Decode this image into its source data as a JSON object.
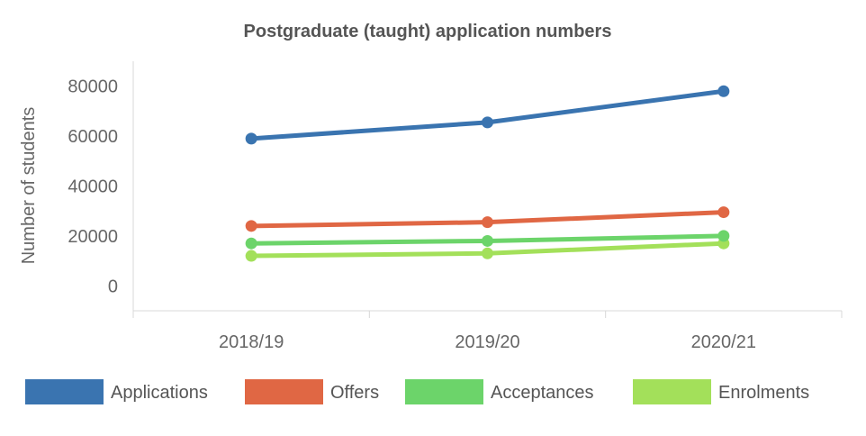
{
  "chart_data": {
    "type": "line",
    "title": "Postgraduate (taught) application numbers",
    "xlabel": "",
    "ylabel": "Number of students",
    "categories": [
      "2018/19",
      "2019/20",
      "2020/21"
    ],
    "ylim": [
      -10000,
      90000
    ],
    "yticks": [
      0,
      20000,
      40000,
      60000,
      80000
    ],
    "grid": false,
    "legend_position": "bottom",
    "series": [
      {
        "name": "Applications",
        "color": "#3a74b0",
        "values": [
          59000,
          65500,
          78000
        ]
      },
      {
        "name": "Offers",
        "color": "#e06744",
        "values": [
          24000,
          25500,
          29500
        ]
      },
      {
        "name": "Acceptances",
        "color": "#6cd46a",
        "values": [
          17000,
          18000,
          20000
        ]
      },
      {
        "name": "Enrolments",
        "color": "#a3e05a",
        "values": [
          12000,
          13000,
          17000
        ]
      }
    ]
  }
}
